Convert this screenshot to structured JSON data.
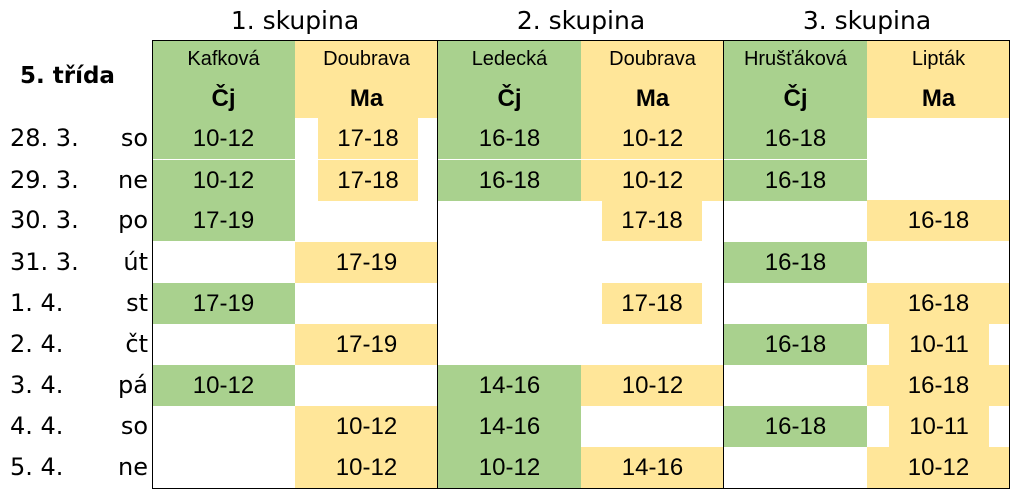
{
  "header": {
    "class_title": "5. třída",
    "groups": [
      "1. skupina",
      "2. skupina",
      "3. skupina"
    ],
    "teachers": [
      "Kafková",
      "Doubrava",
      "Ledecká",
      "Doubrava",
      "Hrušťáková",
      "Lipták"
    ],
    "subjects": [
      "Čj",
      "Ma",
      "Čj",
      "Ma",
      "Čj",
      "Ma"
    ]
  },
  "colors": {
    "green": "#a9d18e",
    "yellow": "#ffe699"
  },
  "rows": [
    {
      "date": "28. 3.",
      "day": "so",
      "cells": [
        "10-12",
        "17-18",
        "16-18",
        "10-12",
        "16-18",
        ""
      ]
    },
    {
      "date": "29. 3.",
      "day": "ne",
      "cells": [
        "10-12",
        "17-18",
        "16-18",
        "10-12",
        "16-18",
        ""
      ]
    },
    {
      "date": "30. 3.",
      "day": "po",
      "cells": [
        "17-19",
        "",
        "",
        "17-18",
        "",
        "16-18"
      ]
    },
    {
      "date": "31. 3.",
      "day": "út",
      "cells": [
        "",
        "17-19",
        "",
        "",
        "16-18",
        ""
      ]
    },
    {
      "date": "1. 4.",
      "day": "st",
      "cells": [
        "17-19",
        "",
        "",
        "17-18",
        "",
        "16-18"
      ]
    },
    {
      "date": "2. 4.",
      "day": "čt",
      "cells": [
        "",
        "17-19",
        "",
        "",
        "16-18",
        "10-11"
      ]
    },
    {
      "date": "3. 4.",
      "day": "pá",
      "cells": [
        "10-12",
        "",
        "14-16",
        "10-12",
        "",
        "16-18"
      ]
    },
    {
      "date": "4. 4.",
      "day": "so",
      "cells": [
        "",
        "10-12",
        "14-16",
        "",
        "16-18",
        "10-11"
      ]
    },
    {
      "date": "5. 4.",
      "day": "ne",
      "cells": [
        "",
        "10-12",
        "10-12",
        "14-16",
        "",
        "10-12"
      ]
    }
  ]
}
